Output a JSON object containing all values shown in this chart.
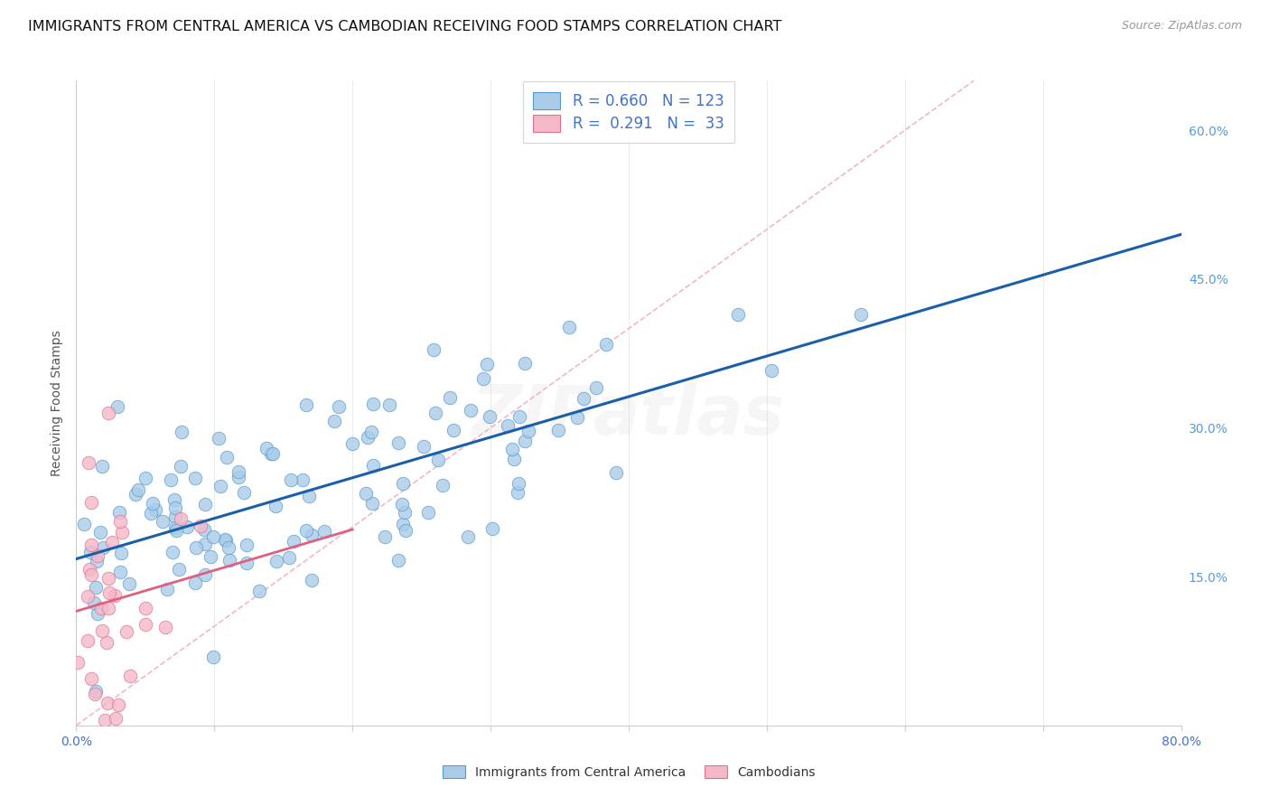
{
  "title": "IMMIGRANTS FROM CENTRAL AMERICA VS CAMBODIAN RECEIVING FOOD STAMPS CORRELATION CHART",
  "source": "Source: ZipAtlas.com",
  "ylabel": "Receiving Food Stamps",
  "xlim": [
    0.0,
    0.8
  ],
  "ylim": [
    0.0,
    0.65
  ],
  "xticks": [
    0.0,
    0.1,
    0.2,
    0.3,
    0.4,
    0.5,
    0.6,
    0.7,
    0.8
  ],
  "xticklabels": [
    "0.0%",
    "",
    "",
    "",
    "",
    "",
    "",
    "",
    "80.0%"
  ],
  "yticks_right": [
    0.15,
    0.3,
    0.45,
    0.6
  ],
  "ytick_labels_right": [
    "15.0%",
    "30.0%",
    "45.0%",
    "60.0%"
  ],
  "blue_fill": "#aacce8",
  "blue_edge": "#5599cc",
  "pink_fill": "#f5b8c8",
  "pink_edge": "#e07090",
  "legend_text_color": "#4472c4",
  "regression_blue_color": "#1a5fa8",
  "regression_pink_color": "#e06080",
  "diagonal_color": "#f0b0c0",
  "grid_color": "#e8e8e8",
  "tick_color_x": "#4472c4",
  "tick_color_y": "#5b9bd5",
  "title_fontsize": 11.5,
  "source_fontsize": 9,
  "axis_label_fontsize": 10,
  "tick_fontsize": 10,
  "legend_fontsize": 12,
  "watermark_alpha": 0.12,
  "seed": 7
}
